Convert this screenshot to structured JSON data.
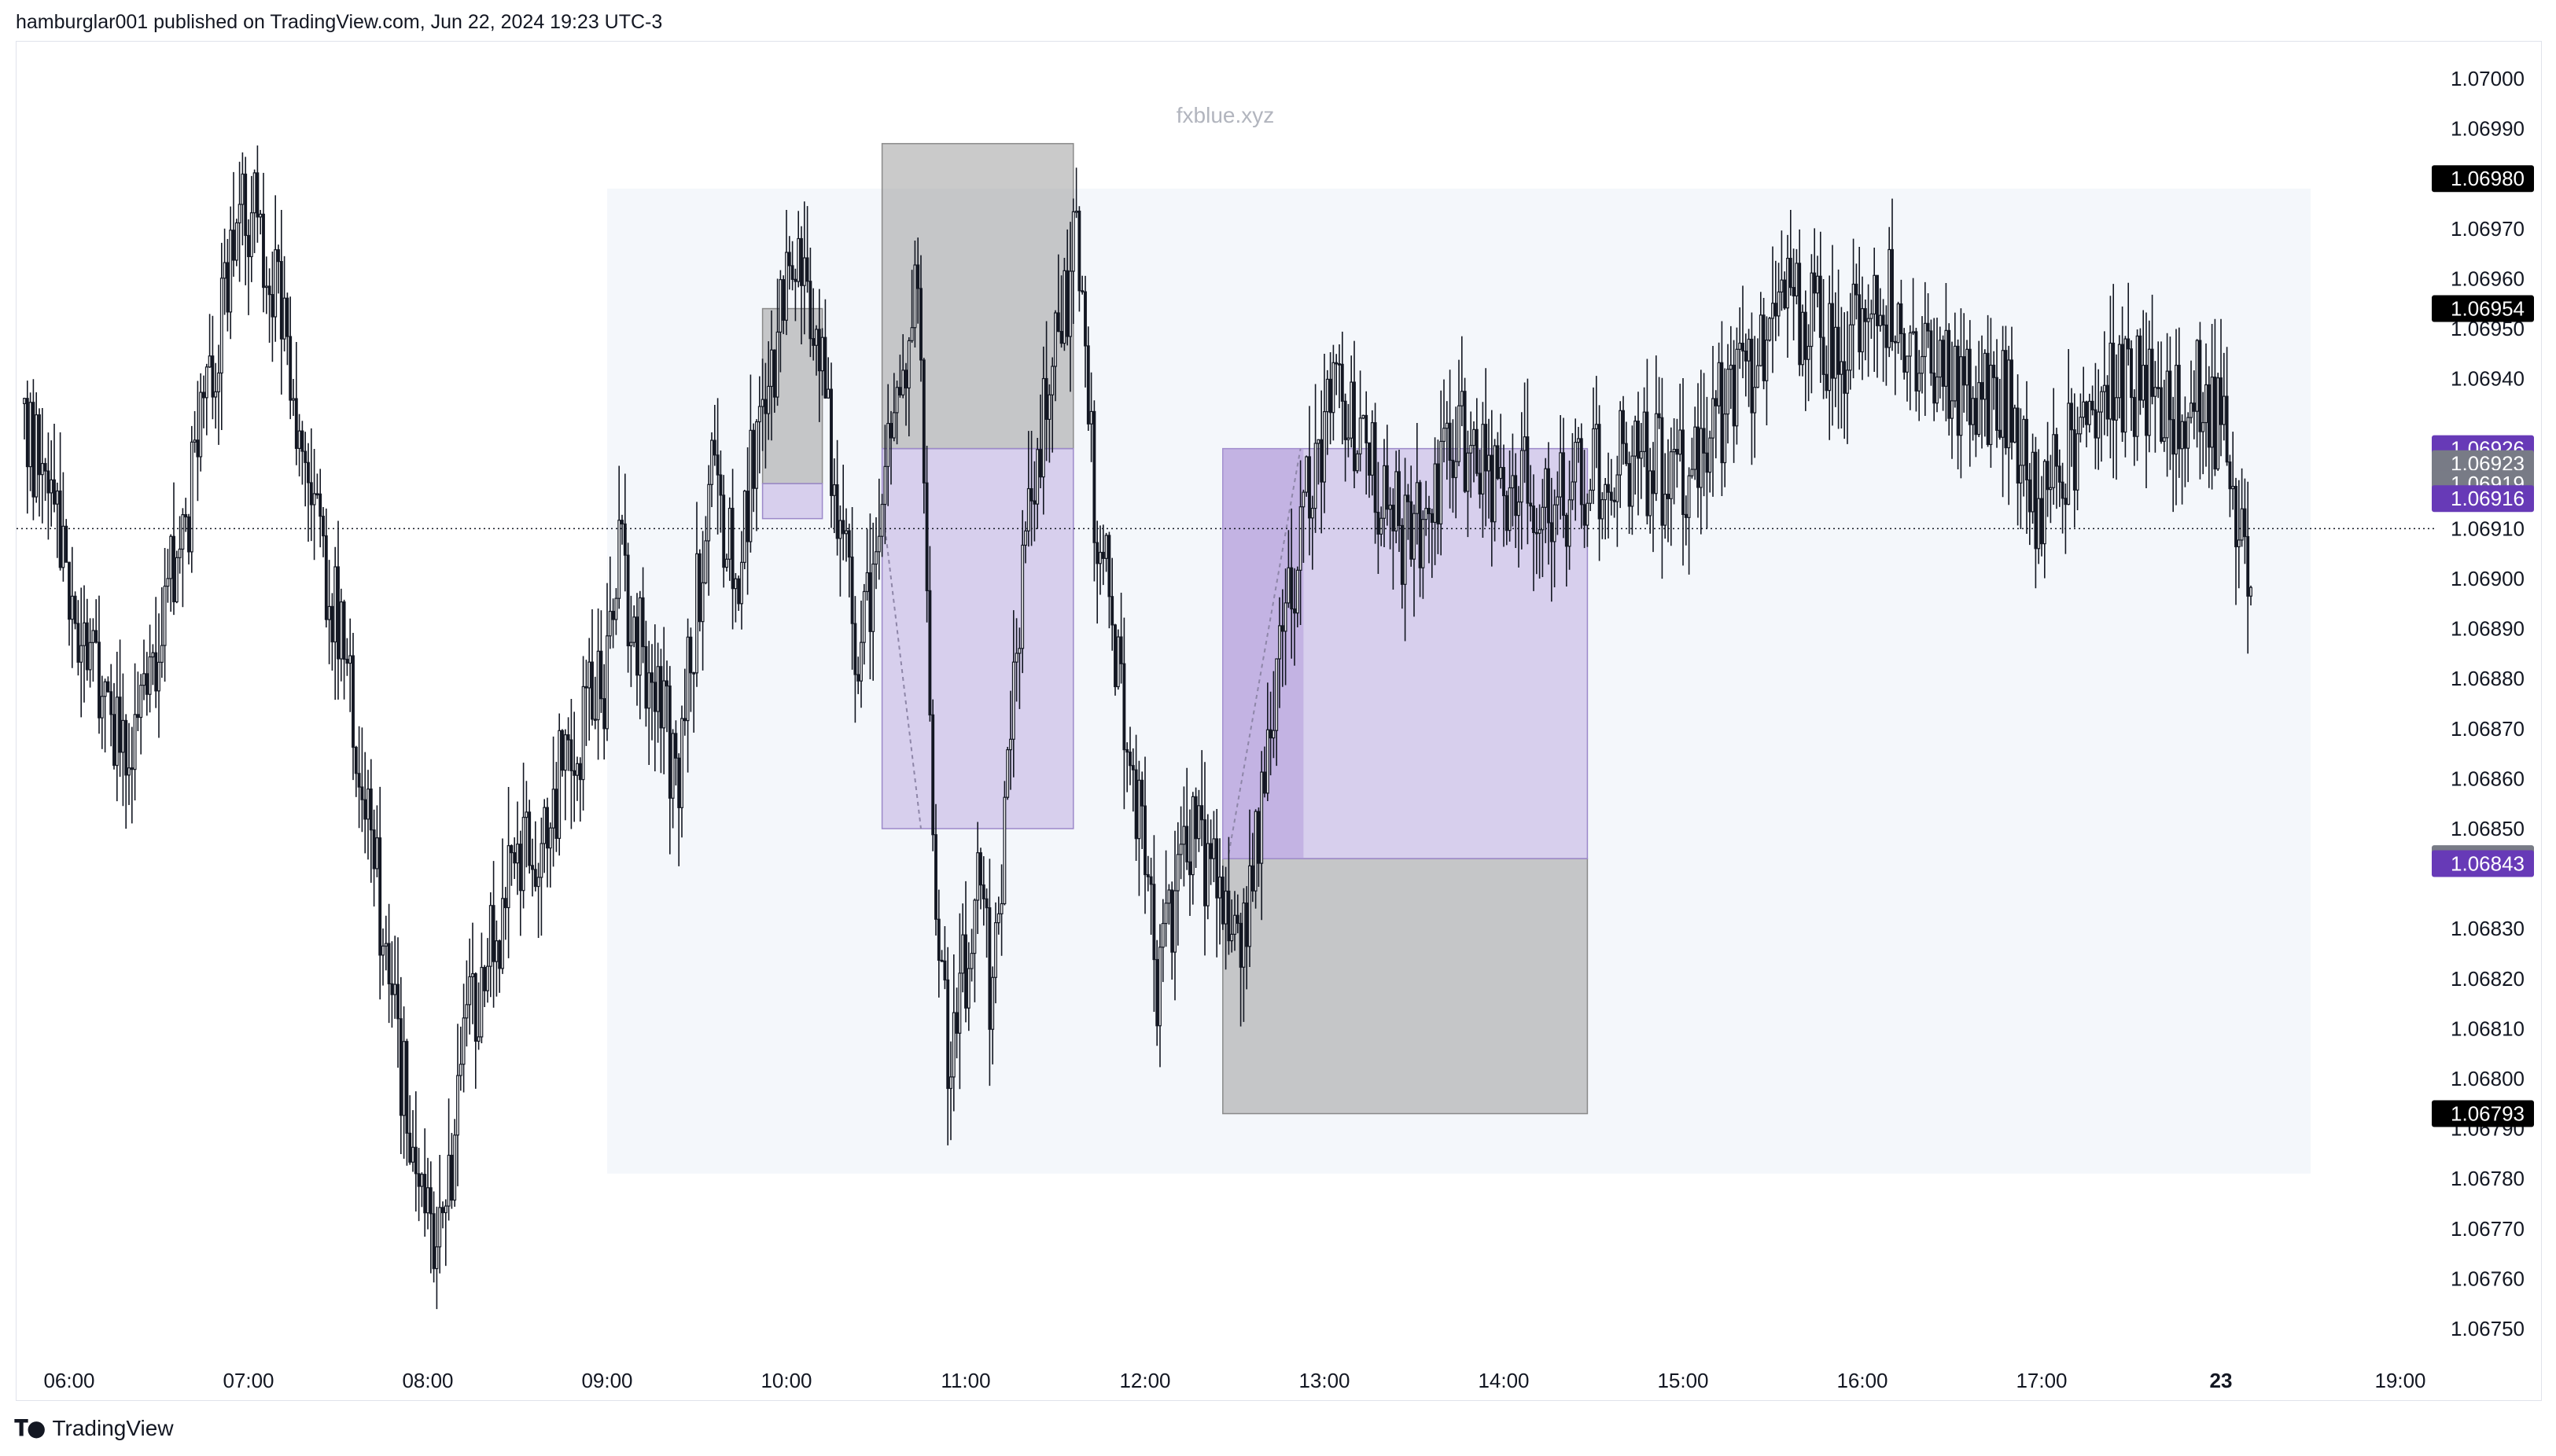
{
  "header": {
    "published_text": "hamburglar001 published on TradingView.com, Jun 22, 2024 19:23 UTC-3"
  },
  "footer": {
    "brand": "TradingView",
    "logo_icon": "tradingview-logo-icon"
  },
  "watermark": "fxblue.xyz",
  "colors": {
    "candle": "#131722",
    "purple_badge": "#673ab7",
    "gray_badge": "#787b86",
    "black_badge": "#000000",
    "long_zone": "#b39ddb",
    "stop_zone": "#9e9e9e",
    "session_bg": "#f0f3fa"
  },
  "chart_data": {
    "type": "candlestick",
    "symbol_price_scale": "right",
    "ylim": [
      1.06742,
      1.07008
    ],
    "y_ticks": [
      "1.07000",
      "1.06990",
      "1.06970",
      "1.06960",
      "1.06950",
      "1.06940",
      "1.06910",
      "1.06900",
      "1.06890",
      "1.06880",
      "1.06870",
      "1.06860",
      "1.06850",
      "1.06830",
      "1.06820",
      "1.06810",
      "1.06800",
      "1.06790",
      "1.06780",
      "1.06770",
      "1.06760",
      "1.06750"
    ],
    "x_ticks": [
      "06:00",
      "07:00",
      "08:00",
      "09:00",
      "10:00",
      "11:00",
      "12:00",
      "13:00",
      "14:00",
      "15:00",
      "16:00",
      "17:00",
      "23",
      "19:00"
    ],
    "x_tick_bold": "23",
    "price_badges": [
      {
        "value": "1.06980",
        "style": "black"
      },
      {
        "value": "1.06954",
        "style": "black"
      },
      {
        "value": "1.06926",
        "style": "purple"
      },
      {
        "value": "1.06923",
        "style": "gray"
      },
      {
        "value": "1.06919",
        "style": "gray"
      },
      {
        "value": "1.06916",
        "style": "purple"
      },
      {
        "value": "1.06844",
        "style": "gray"
      },
      {
        "value": "1.06843",
        "style": "purple"
      },
      {
        "value": "1.06793",
        "style": "black"
      }
    ],
    "current_price_line": 1.0691,
    "session_box": {
      "time_start": "09:00",
      "time_end": "18:30",
      "price_top": 1.06978,
      "price_bottom": 1.06781
    },
    "position_boxes": [
      {
        "kind": "short-small",
        "time_start": "09:52",
        "time_end": "10:12",
        "entry": 1.06919,
        "stop": 1.06954,
        "target": 1.06912
      },
      {
        "kind": "short-large",
        "time_start": "10:32",
        "time_end": "11:36",
        "entry": 1.06926,
        "stop": 1.06987,
        "target": 1.0685
      },
      {
        "kind": "long",
        "time_start": "12:26",
        "time_end": "14:28",
        "entry": 1.06844,
        "stop": 1.06793,
        "target": 1.06926
      }
    ],
    "candle_seed": 20240622,
    "candle_interval_minutes": 1,
    "time_start": "05:45",
    "time_end": "18:10",
    "price_path_keypoints": [
      [
        "05:45",
        1.06935
      ],
      [
        "06:00",
        1.069
      ],
      [
        "06:20",
        1.0686
      ],
      [
        "06:40",
        1.0691
      ],
      [
        "06:55",
        1.0696
      ],
      [
        "07:00",
        1.06975
      ],
      [
        "07:10",
        1.0696
      ],
      [
        "07:20",
        1.0692
      ],
      [
        "07:35",
        1.0688
      ],
      [
        "07:50",
        1.0681
      ],
      [
        "07:58",
        1.0678
      ],
      [
        "08:05",
        1.0677
      ],
      [
        "08:15",
        1.0681
      ],
      [
        "08:30",
        1.0684
      ],
      [
        "08:45",
        1.0686
      ],
      [
        "09:00",
        1.0688
      ],
      [
        "09:05",
        1.06905
      ],
      [
        "09:15",
        1.0688
      ],
      [
        "09:25",
        1.0686
      ],
      [
        "09:35",
        1.0692
      ],
      [
        "09:45",
        1.06905
      ],
      [
        "09:55",
        1.0694
      ],
      [
        "10:05",
        1.0697
      ],
      [
        "10:15",
        1.0693
      ],
      [
        "10:25",
        1.0688
      ],
      [
        "10:35",
        1.0693
      ],
      [
        "10:45",
        1.0696
      ],
      [
        "10:50",
        1.0685
      ],
      [
        "10:55",
        1.068
      ],
      [
        "11:05",
        1.0684
      ],
      [
        "11:10",
        1.06815
      ],
      [
        "11:20",
        1.069
      ],
      [
        "11:30",
        1.06945
      ],
      [
        "11:38",
        1.06965
      ],
      [
        "11:45",
        1.0691
      ],
      [
        "11:55",
        1.0687
      ],
      [
        "12:05",
        1.0682
      ],
      [
        "12:15",
        1.0685
      ],
      [
        "12:25",
        1.0684
      ],
      [
        "12:35",
        1.0683
      ],
      [
        "12:45",
        1.0688
      ],
      [
        "12:55",
        1.0692
      ],
      [
        "13:05",
        1.0694
      ],
      [
        "13:15",
        1.06925
      ],
      [
        "13:30",
        1.06905
      ],
      [
        "13:45",
        1.0693
      ],
      [
        "14:00",
        1.0692
      ],
      [
        "14:20",
        1.06915
      ],
      [
        "14:40",
        1.06925
      ],
      [
        "15:00",
        1.0692
      ],
      [
        "15:15",
        1.06935
      ],
      [
        "15:35",
        1.06955
      ],
      [
        "15:55",
        1.06945
      ],
      [
        "16:05",
        1.0696
      ],
      [
        "16:20",
        1.06945
      ],
      [
        "16:35",
        1.06935
      ],
      [
        "16:50",
        1.06935
      ],
      [
        "17:00",
        1.06912
      ],
      [
        "17:10",
        1.06925
      ],
      [
        "17:25",
        1.0694
      ],
      [
        "17:45",
        1.06935
      ],
      [
        "17:55",
        1.0694
      ],
      [
        "18:05",
        1.0692
      ],
      [
        "18:10",
        1.06905
      ]
    ]
  }
}
